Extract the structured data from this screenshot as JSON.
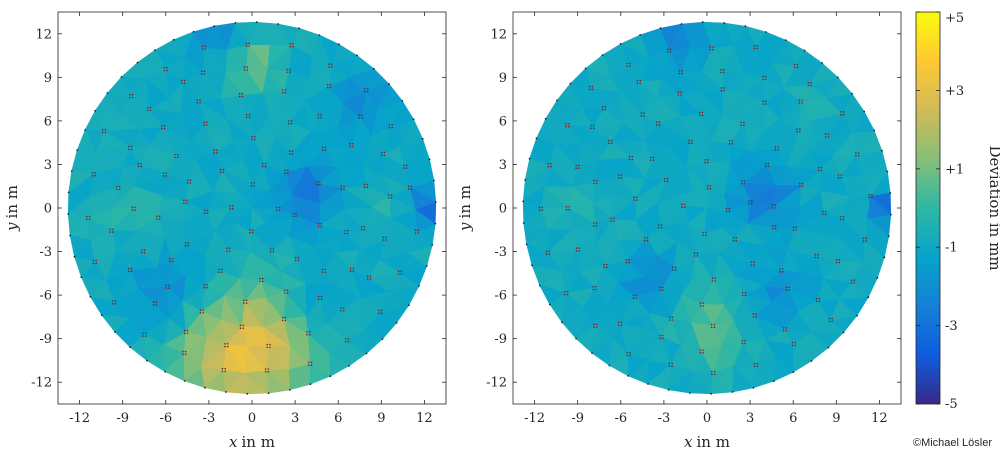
{
  "chart_data": [
    {
      "type": "heatmap",
      "panel": "left",
      "xlabel_var": "x",
      "xlabel_unit": "in m",
      "ylabel_var": "y",
      "ylabel_unit": "in m",
      "xlim": [
        -13.5,
        13.5
      ],
      "ylim": [
        -13.5,
        13.5
      ],
      "xticks": [
        -12,
        -9,
        -6,
        -3,
        0,
        3,
        6,
        9,
        12
      ],
      "yticks": [
        12,
        9,
        6,
        3,
        0,
        -3,
        -6,
        -9,
        -12
      ],
      "xtick_labels": [
        "-12",
        "-9",
        "-6",
        "-3",
        "0",
        "3",
        "6",
        "9",
        "12"
      ],
      "ytick_labels": [
        "12",
        "9",
        "6",
        "3",
        "0",
        "-3",
        "-6",
        "-9",
        "-12"
      ],
      "surface_radius": 12.8,
      "base_deviation_mm": -0.9,
      "anomalies": [
        {
          "x": 0.0,
          "y": -11.0,
          "value": 3.0,
          "spread": 3.0
        },
        {
          "x": 1.5,
          "y": -8.0,
          "value": 2.0,
          "spread": 2.2
        },
        {
          "x": -3.0,
          "y": -10.0,
          "value": 1.5,
          "spread": 2.0
        },
        {
          "x": 0.0,
          "y": 10.0,
          "value": 2.2,
          "spread": 1.4
        },
        {
          "x": 4.0,
          "y": 1.0,
          "value": -2.0,
          "spread": 1.5
        },
        {
          "x": 12.5,
          "y": 0.0,
          "value": -3.0,
          "spread": 0.8
        },
        {
          "x": -9.0,
          "y": 0.0,
          "value": 0.8,
          "spread": 1.5
        },
        {
          "x": 8.5,
          "y": 0.0,
          "value": 0.7,
          "spread": 1.2
        },
        {
          "x": -2.0,
          "y": 12.0,
          "value": -1.3,
          "spread": 1.5
        },
        {
          "x": 4.0,
          "y": -7.0,
          "value": -1.3,
          "spread": 1.6
        },
        {
          "x": -6.0,
          "y": -6.0,
          "value": -1.4,
          "spread": 1.6
        },
        {
          "x": 7.5,
          "y": 7.0,
          "value": -1.2,
          "spread": 1.5
        }
      ]
    },
    {
      "type": "heatmap",
      "panel": "right",
      "xlabel_var": "x",
      "xlabel_unit": "in m",
      "ylabel_var": "y",
      "ylabel_unit": "in m",
      "xlim": [
        -13.5,
        13.5
      ],
      "ylim": [
        -13.5,
        13.5
      ],
      "xticks": [
        -12,
        -9,
        -6,
        -3,
        0,
        3,
        6,
        9,
        12
      ],
      "yticks": [
        12,
        9,
        6,
        3,
        0,
        -3,
        -6,
        -9,
        -12
      ],
      "xtick_labels": [
        "-12",
        "-9",
        "-6",
        "-3",
        "0",
        "3",
        "6",
        "9",
        "12"
      ],
      "ytick_labels": [
        "12",
        "9",
        "6",
        "3",
        "0",
        "-3",
        "-6",
        "-9",
        "-12"
      ],
      "surface_radius": 12.8,
      "base_deviation_mm": -0.9,
      "anomalies": [
        {
          "x": 0.0,
          "y": -7.5,
          "value": 1.3,
          "spread": 1.6
        },
        {
          "x": 1.0,
          "y": -10.0,
          "value": 0.8,
          "spread": 1.5
        },
        {
          "x": 4.0,
          "y": 1.0,
          "value": -2.0,
          "spread": 1.5
        },
        {
          "x": 12.5,
          "y": 0.0,
          "value": -3.0,
          "spread": 0.8
        },
        {
          "x": -9.0,
          "y": 0.0,
          "value": 0.5,
          "spread": 1.5
        },
        {
          "x": 7.5,
          "y": 7.0,
          "value": 0.3,
          "spread": 1.2
        },
        {
          "x": -2.0,
          "y": 12.0,
          "value": -1.4,
          "spread": 1.5
        },
        {
          "x": -4.0,
          "y": -5.0,
          "value": -1.5,
          "spread": 1.3
        },
        {
          "x": 5.0,
          "y": -6.0,
          "value": -1.3,
          "spread": 1.4
        }
      ]
    }
  ],
  "colorbar": {
    "label": "Deviation in mm",
    "range": [
      -5,
      5
    ],
    "tick_values": [
      5,
      3,
      1,
      -1,
      -3,
      -5
    ],
    "tick_labels": [
      "+5",
      "+3",
      "+1",
      "-1",
      "-3",
      "-5"
    ],
    "colormap": "parula",
    "colors": [
      "#352a87",
      "#0f5cdd",
      "#1481d6",
      "#06a4ca",
      "#2eb7a4",
      "#87bf77",
      "#d1bb59",
      "#fec832",
      "#f9fb0e"
    ]
  },
  "credit": "©Michael Lösler",
  "marker_color": "#8b1a1a",
  "edge_marker_color": "#222222"
}
